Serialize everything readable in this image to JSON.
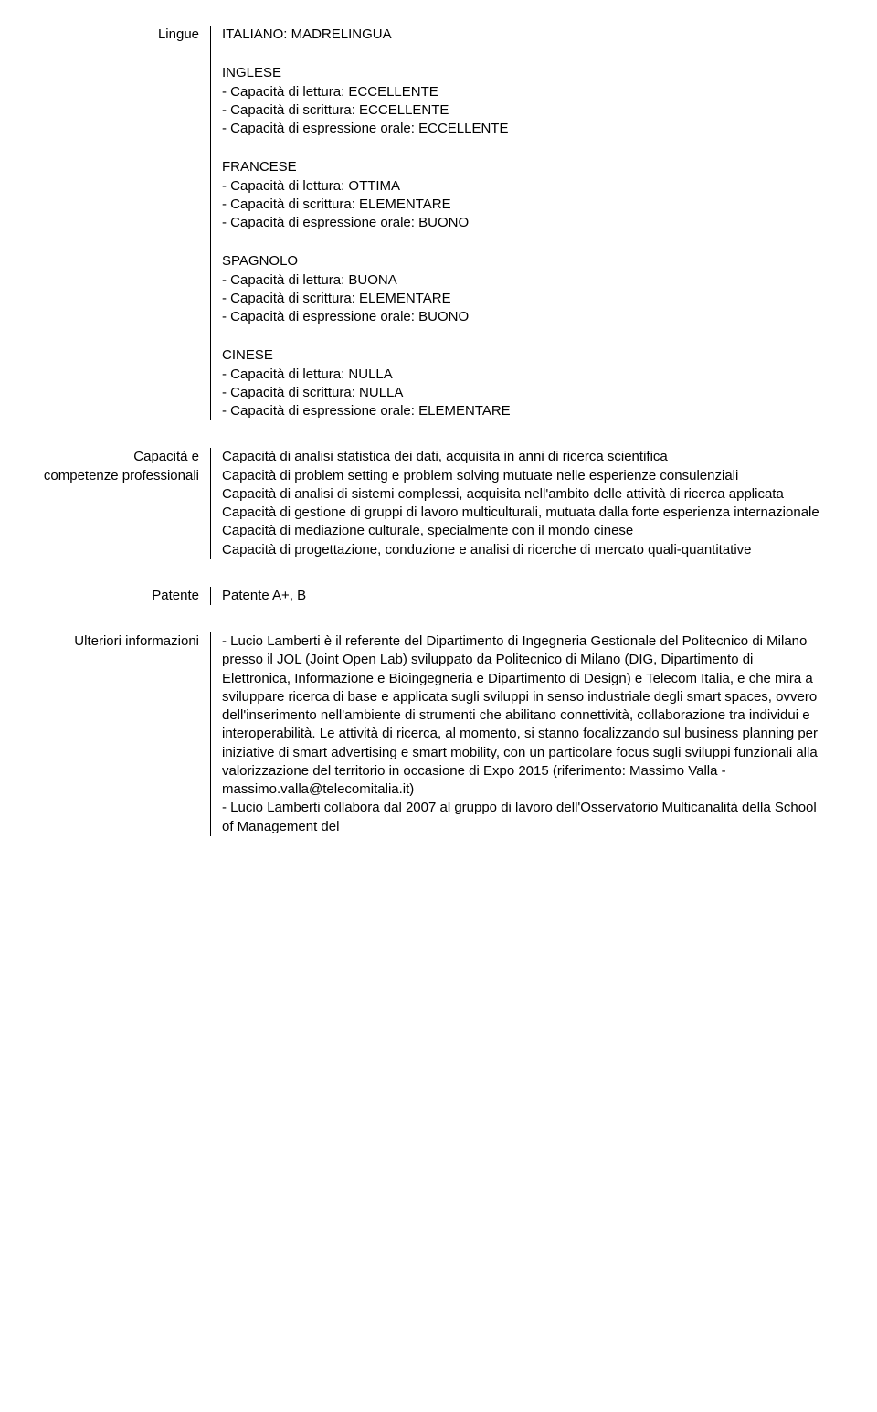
{
  "languages": {
    "label": "Lingue",
    "native": "ITALIANO: MADRELINGUA",
    "items": [
      {
        "name": "INGLESE",
        "reading": "- Capacità di lettura:  ECCELLENTE",
        "writing": "- Capacità di scrittura:  ECCELLENTE",
        "speaking": "- Capacità di espressione orale:  ECCELLENTE"
      },
      {
        "name": "FRANCESE",
        "reading": "- Capacità di lettura:  OTTIMA",
        "writing": "- Capacità di scrittura:  ELEMENTARE",
        "speaking": "- Capacità di espressione orale:  BUONO"
      },
      {
        "name": "SPAGNOLO",
        "reading": "- Capacità di lettura:  BUONA",
        "writing": "- Capacità di scrittura:  ELEMENTARE",
        "speaking": "- Capacità di espressione orale:  BUONO"
      },
      {
        "name": "CINESE",
        "reading": "- Capacità di lettura:  NULLA",
        "writing": "- Capacità di scrittura:  NULLA",
        "speaking": "- Capacità di espressione orale:  ELEMENTARE"
      }
    ]
  },
  "competences": {
    "label_line1": "Capacità e",
    "label_line2": "competenze professionali",
    "lines": [
      "Capacità di analisi statistica dei dati, acquisita in anni di ricerca scientifica",
      "Capacità di problem setting e problem solving mutuate nelle esperienze consulenziali",
      "Capacità di analisi di sistemi complessi, acquisita nell'ambito delle attività di ricerca applicata",
      "Capacità di gestione di gruppi di lavoro multiculturali, mutuata dalla forte esperienza internazionale",
      "Capacità di mediazione culturale, specialmente con il mondo cinese",
      "Capacità di progettazione, conduzione e analisi di ricerche di mercato quali-quantitative"
    ]
  },
  "licence": {
    "label": "Patente",
    "value": "Patente A+, B"
  },
  "further": {
    "label": "Ulteriori informazioni",
    "text": "- Lucio Lamberti è il referente del Dipartimento di Ingegneria Gestionale del Politecnico di Milano presso il JOL (Joint Open Lab) sviluppato da Politecnico di Milano (DIG, Dipartimento di Elettronica, Informazione e Bioingegneria e Dipartimento di Design) e Telecom Italia, e che mira a sviluppare ricerca di base e applicata sugli sviluppi in senso industriale degli smart spaces, ovvero dell'inserimento nell'ambiente di strumenti che abilitano connettività, collaborazione tra individui e interoperabilità. Le attività di ricerca, al momento, si stanno focalizzando sul business planning per iniziative di smart advertising e smart mobility, con un particolare focus sugli sviluppi funzionali alla valorizzazione del territorio in occasione di Expo 2015 (riferimento: Massimo Valla - massimo.valla@telecomitalia.it)",
    "text2": "- Lucio Lamberti collabora dal 2007 al gruppo di lavoro dell'Osservatorio Multicanalità della School of Management del"
  }
}
